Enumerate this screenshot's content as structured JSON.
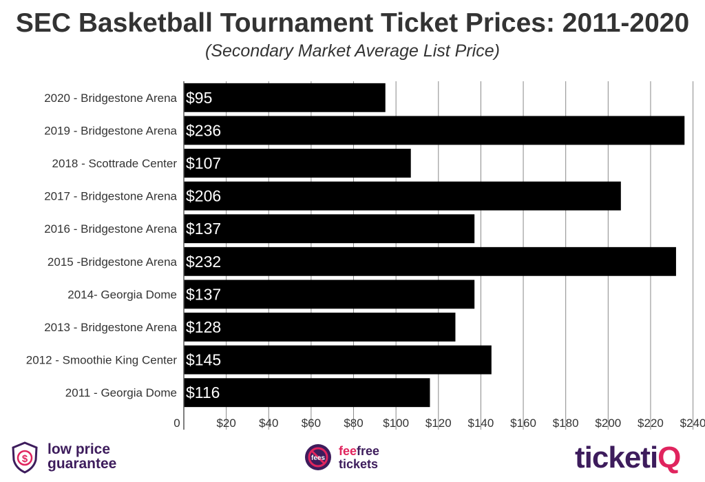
{
  "chart_data": {
    "type": "bar",
    "orientation": "horizontal",
    "title": "SEC Basketball Tournament Ticket Prices: 2011-2020",
    "subtitle": "(Secondary Market Average List Price)",
    "categories": [
      "2020 - Bridgestone Arena",
      "2019 - Bridgestone Arena",
      "2018 - Scottrade Center",
      "2017 - Bridgestone Arena",
      "2016 - Bridgestone Arena",
      "2015 -Bridgestone Arena",
      "2014- Georgia Dome",
      "2013 - Bridgestone Arena",
      "2012 - Smoothie King Center",
      "2011 - Georgia Dome"
    ],
    "values": [
      95,
      236,
      107,
      206,
      137,
      232,
      137,
      128,
      145,
      116
    ],
    "data_labels": [
      "$95",
      "$236",
      "$107",
      "$206",
      "$137",
      "$232",
      "$137",
      "$128",
      "$145",
      "$116"
    ],
    "x_ticks": [
      0,
      20,
      40,
      60,
      80,
      100,
      120,
      140,
      160,
      180,
      200,
      220,
      240
    ],
    "x_tick_labels": [
      "0",
      "$20",
      "$40",
      "$60",
      "$80",
      "$100",
      "$120",
      "$140",
      "$160",
      "$180",
      "$200",
      "$220",
      "$240"
    ],
    "xlim": [
      0,
      245
    ],
    "grid": true,
    "bar_color": "#000000",
    "grid_color": "#888888",
    "label_color": "#ffffff"
  },
  "footer": {
    "low_price": {
      "line1": "low price",
      "line2": "guarantee"
    },
    "fee_free": {
      "line1_a": "fee",
      "line1_b": "free",
      "line2": "tickets",
      "badge_text": "fees"
    },
    "brand": {
      "name_main": "ticketi",
      "name_accent": "Q"
    },
    "colors": {
      "purple": "#3d1c5c",
      "pink": "#e0245e"
    }
  }
}
